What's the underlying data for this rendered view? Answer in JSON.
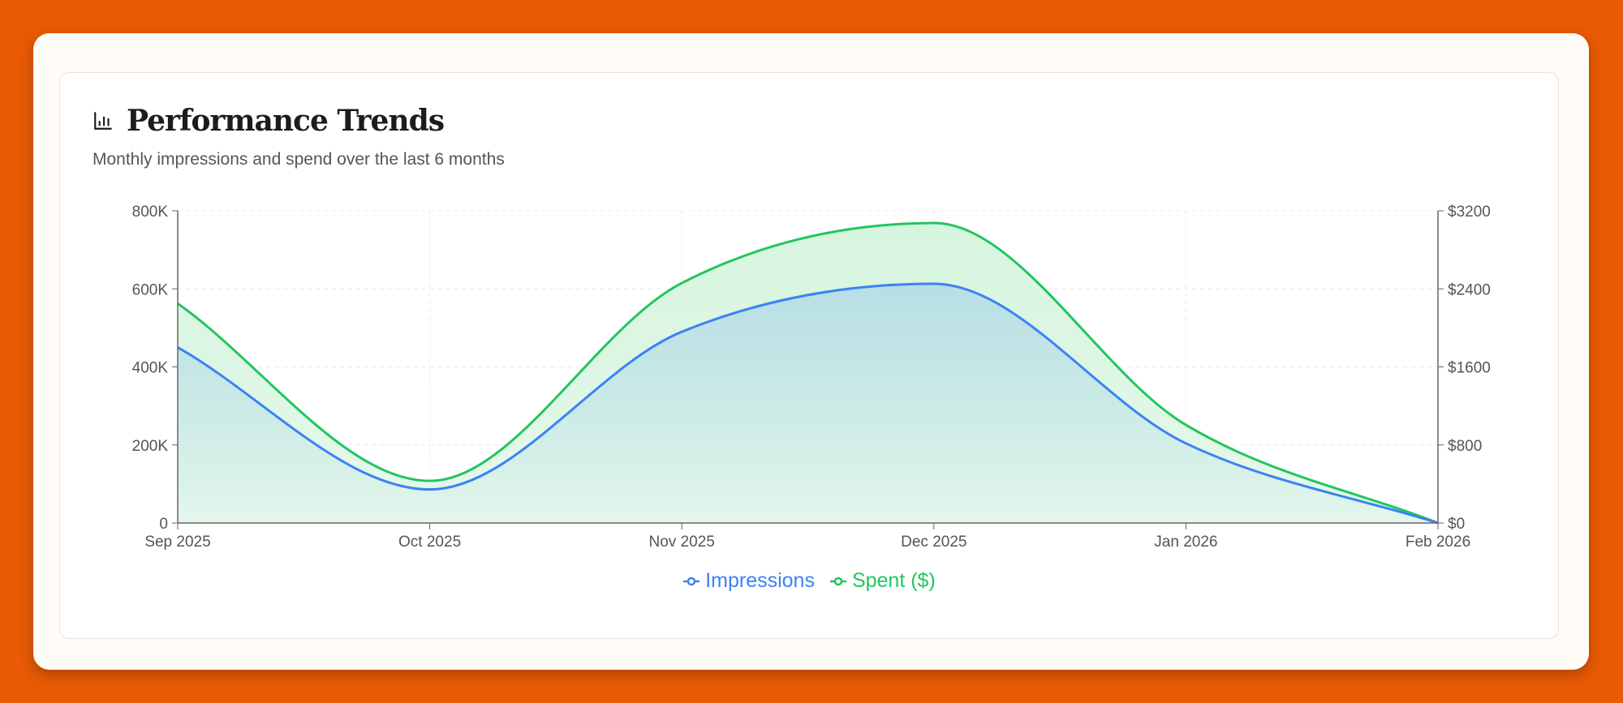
{
  "header": {
    "title": "Performance Trends",
    "subtitle": "Monthly impressions and spend over the last 6 months",
    "icon": "bar-chart-icon"
  },
  "chart_data": {
    "type": "area",
    "categories": [
      "Sep 2025",
      "Oct 2025",
      "Nov 2025",
      "Dec 2025",
      "Jan 2026",
      "Feb 2026"
    ],
    "series": [
      {
        "name": "Impressions",
        "axis": "left",
        "color": "#3b82f6",
        "values": [
          450000,
          86000,
          490000,
          613000,
          204000,
          0
        ]
      },
      {
        "name": "Spent ($)",
        "axis": "right",
        "color": "#22c55e",
        "values": [
          2250,
          432,
          2460,
          3075,
          1005,
          0
        ]
      }
    ],
    "y_left": {
      "ticks": [
        "0",
        "200K",
        "400K",
        "600K",
        "800K"
      ],
      "range": [
        0,
        800000
      ]
    },
    "y_right": {
      "ticks": [
        "$0",
        "$800",
        "$1600",
        "$2400",
        "$3200"
      ],
      "range": [
        0,
        3200
      ]
    },
    "grid": true,
    "legend_placement": "bottom",
    "curve": "smooth"
  }
}
